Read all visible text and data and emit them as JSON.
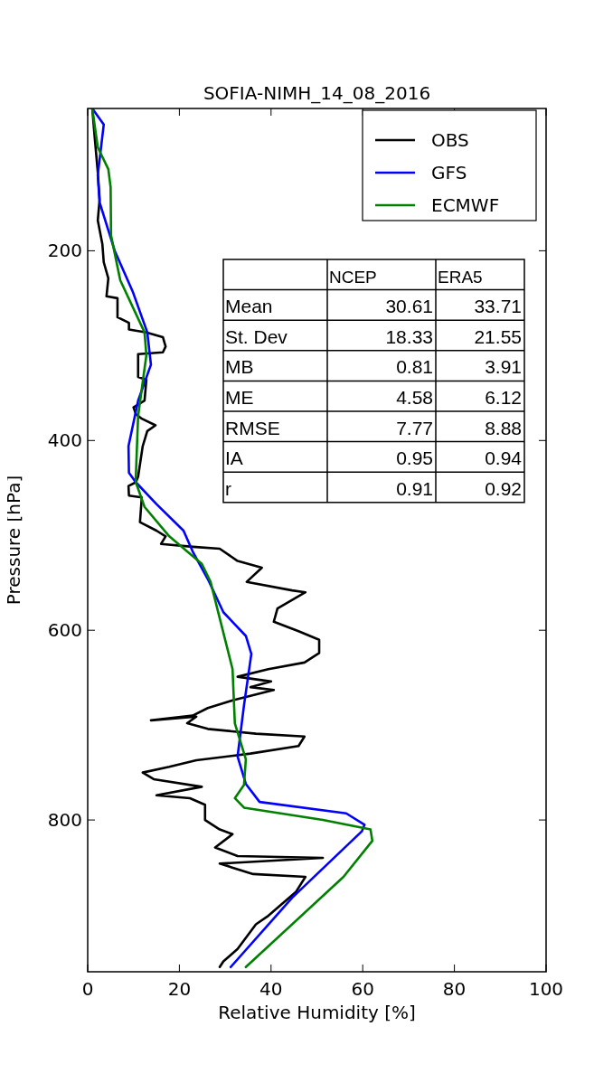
{
  "chart_data": {
    "type": "line",
    "title": "SOFIA-NIMH_14_08_2016",
    "xlabel": "Relative Humidity [%]",
    "ylabel": "Pressure [hPa]",
    "xlim": [
      0,
      100
    ],
    "xticks": [
      0,
      20,
      40,
      60,
      80,
      100
    ],
    "ylim": [
      960,
      50
    ],
    "yticks": [
      200,
      400,
      600,
      800
    ],
    "grid": false,
    "legend": "top right",
    "line_style": "solid",
    "marker": "none",
    "annotations": [
      "NCEP",
      "ERA5",
      "Mean",
      "30.61",
      "33.71",
      "St. Dev",
      "18.33",
      "21.55",
      "MB",
      "0.81",
      "3.91",
      "ME",
      "4.58",
      "6.12",
      "RMSE",
      "7.77",
      "8.88",
      "IA",
      "0.95",
      "0.94",
      "r",
      "0.91",
      "0.92"
    ],
    "series": [
      {
        "name": "OBS",
        "color": "#000000",
        "x": [
          1,
          1.5,
          2.2,
          2.6,
          2.2,
          3.2,
          3.5,
          4.5,
          4.1,
          6.5,
          6.5,
          9,
          9,
          12.8,
          16.4,
          17,
          16.4,
          11,
          11,
          12.8,
          12.4,
          10,
          10.5,
          11.8,
          14.8,
          13,
          12,
          11,
          10.5,
          8.9,
          9,
          11.8,
          11.4,
          15,
          17,
          16,
          22.9,
          28.8,
          32.7,
          38,
          34.7,
          44.6,
          47.5,
          41.4,
          40.6,
          46,
          50.5,
          50.5,
          47.3,
          39.4,
          32.7,
          40,
          35.5,
          40.6,
          31.6,
          26.2,
          22.9,
          13.8,
          23.7,
          21.7,
          26.2,
          36.7,
          47.3,
          46,
          35.5,
          23.7,
          17.8,
          12,
          14.4,
          24.9,
          15,
          22.3,
          25.6,
          25.6,
          28.8,
          31.6,
          27.8,
          32.7,
          51.3,
          28.8,
          36.1,
          47.5,
          45.4,
          39.4,
          36.7,
          32.7,
          29.6,
          28.8
        ],
        "values": [
          50,
          79,
          117,
          146,
          168,
          193,
          212,
          229,
          248,
          250,
          270,
          276,
          283,
          286,
          291,
          301,
          307,
          309,
          333,
          336,
          358,
          365,
          372,
          377,
          384,
          390,
          406,
          438,
          444,
          448,
          458,
          460,
          486,
          495,
          501,
          509,
          512,
          514,
          527,
          534,
          549,
          558,
          560,
          577,
          591,
          601,
          610,
          624,
          634,
          641,
          649,
          654,
          660,
          663,
          674,
          682,
          690,
          695,
          691,
          698,
          704,
          709,
          712,
          722,
          730,
          737,
          744,
          750,
          757,
          765,
          774,
          777,
          784,
          800,
          810,
          815,
          829,
          838,
          840,
          846,
          857,
          860,
          876,
          901,
          910,
          936,
          949,
          955
        ]
      },
      {
        "name": "GFS",
        "color": "#0000ff",
        "x": [
          1,
          3.5,
          2.2,
          2.6,
          5.9,
          9.9,
          13,
          13.8,
          11,
          8.9,
          9,
          10.5,
          15,
          20.9,
          22.9,
          26.2,
          29.6,
          34.5,
          35.7,
          34.1,
          32.7,
          34.5,
          37.5,
          56.4,
          60.4,
          59.8,
          44.6,
          31.2
        ],
        "values": [
          50,
          67,
          120,
          149,
          200,
          244,
          286,
          320,
          358,
          406,
          434,
          444,
          467,
          495,
          517,
          546,
          581,
          606,
          625,
          679,
          733,
          762,
          781,
          793,
          805,
          812,
          882,
          955
        ]
      },
      {
        "name": "ECMWF",
        "color": "#008000",
        "x": [
          1,
          2.2,
          4.5,
          5,
          5.1,
          7.1,
          12.4,
          12.8,
          11,
          10.5,
          10.5,
          12.4,
          17.8,
          24.9,
          26.8,
          31.6,
          32.1,
          34.5,
          34.1,
          32.1,
          34.1,
          51.3,
          61.7,
          62.1,
          55.8,
          34.5
        ],
        "values": [
          50,
          91,
          114,
          133,
          184,
          231,
          286,
          310,
          374,
          438,
          444,
          470,
          501,
          530,
          549,
          641,
          698,
          736,
          763,
          777,
          787,
          800,
          810,
          822,
          860,
          955
        ]
      }
    ]
  }
}
